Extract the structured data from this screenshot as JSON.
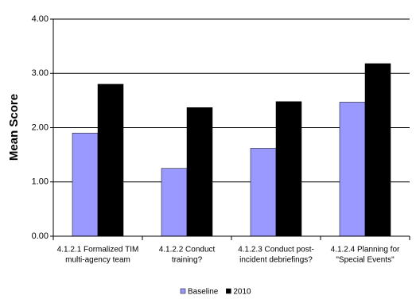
{
  "chart_data": {
    "type": "bar",
    "y_label": "Mean Score",
    "categories": [
      [
        "4.1.2.1 Formalized TIM",
        "multi-agency team"
      ],
      [
        "4.1.2.2  Conduct",
        "training?"
      ],
      [
        "4.1.2.3 Conduct post-",
        "incident debriefings?"
      ],
      [
        "4.1.2.4 Planning for",
        "\"Special Events\""
      ]
    ],
    "series": [
      {
        "name": "Baseline",
        "color": "#9999ff",
        "values": [
          1.9,
          1.25,
          1.62,
          2.47
        ]
      },
      {
        "name": "2010",
        "color": "#000000",
        "values": [
          2.8,
          2.37,
          2.48,
          3.18
        ]
      }
    ],
    "ylim": [
      0,
      4
    ],
    "yticks": [
      {
        "value": 0,
        "label": "0.00"
      },
      {
        "value": 1,
        "label": "1.00"
      },
      {
        "value": 2,
        "label": "2.00"
      },
      {
        "value": 3,
        "label": "3.00"
      },
      {
        "value": 4,
        "label": "4.00"
      }
    ],
    "grid": true,
    "legend": "bottom"
  }
}
